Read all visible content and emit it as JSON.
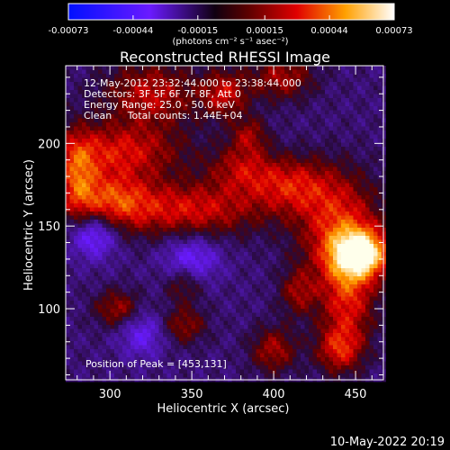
{
  "chart_data": {
    "type": "heatmap",
    "title": "Reconstructed RHESSI Image",
    "xlabel": "Heliocentric X (arcsec)",
    "ylabel": "Heliocentric Y (arcsec)",
    "xlim": [
      273,
      467
    ],
    "ylim": [
      57,
      247
    ],
    "xticks": [
      300,
      350,
      400,
      450
    ],
    "yticks": [
      100,
      150,
      200
    ],
    "colorbar": {
      "range": [
        -0.00073,
        0.00073
      ],
      "ticks": [
        "-0.00073",
        "-0.00044",
        "-0.00015",
        "0.00015",
        "0.00044",
        "0.00073"
      ],
      "units": "(photons cm⁻² s⁻¹ asec⁻²)"
    },
    "info_lines": [
      "12-May-2012 23:32:44.000 to 23:38:44.000",
      "Detectors: 3F 5F 6F 7F 8F, Att 0",
      "Energy Range: 25.0 - 50.0 keV",
      "Clean     Total counts: 1.44E+04"
    ],
    "peak_text": "Position of Peak = [453,131]",
    "peak": [
      453,
      131
    ],
    "emission_regions": [
      {
        "x": 453,
        "y": 133,
        "sx": 12,
        "sy": 10,
        "amp": 1.0
      },
      {
        "x": 440,
        "y": 150,
        "sx": 18,
        "sy": 22,
        "amp": 0.55
      },
      {
        "x": 410,
        "y": 175,
        "sx": 18,
        "sy": 12,
        "amp": 0.45
      },
      {
        "x": 380,
        "y": 185,
        "sx": 14,
        "sy": 10,
        "amp": 0.35
      },
      {
        "x": 350,
        "y": 160,
        "sx": 30,
        "sy": 12,
        "amp": 0.5
      },
      {
        "x": 300,
        "y": 165,
        "sx": 18,
        "sy": 12,
        "amp": 0.55
      },
      {
        "x": 305,
        "y": 195,
        "sx": 28,
        "sy": 12,
        "amp": 0.5
      },
      {
        "x": 280,
        "y": 180,
        "sx": 8,
        "sy": 18,
        "amp": 0.45
      },
      {
        "x": 325,
        "y": 230,
        "sx": 20,
        "sy": 14,
        "amp": 0.45
      },
      {
        "x": 370,
        "y": 230,
        "sx": 10,
        "sy": 10,
        "amp": 0.45
      },
      {
        "x": 405,
        "y": 240,
        "sx": 14,
        "sy": 10,
        "amp": 0.4
      },
      {
        "x": 385,
        "y": 205,
        "sx": 8,
        "sy": 8,
        "amp": 0.35
      },
      {
        "x": 445,
        "y": 105,
        "sx": 12,
        "sy": 20,
        "amp": 0.5
      },
      {
        "x": 440,
        "y": 75,
        "sx": 10,
        "sy": 10,
        "amp": 0.45
      },
      {
        "x": 400,
        "y": 75,
        "sx": 10,
        "sy": 10,
        "amp": 0.4
      },
      {
        "x": 415,
        "y": 110,
        "sx": 8,
        "sy": 10,
        "amp": 0.35
      },
      {
        "x": 305,
        "y": 100,
        "sx": 10,
        "sy": 8,
        "amp": 0.4
      },
      {
        "x": 345,
        "y": 90,
        "sx": 10,
        "sy": 8,
        "amp": 0.35
      },
      {
        "x": 345,
        "y": 115,
        "sx": 8,
        "sy": 8,
        "amp": 0.3
      }
    ],
    "negative_regions": [
      {
        "x": 290,
        "y": 145,
        "sx": 10,
        "sy": 10,
        "amp": 0.5
      },
      {
        "x": 350,
        "y": 130,
        "sx": 12,
        "sy": 10,
        "amp": 0.4
      },
      {
        "x": 320,
        "y": 85,
        "sx": 10,
        "sy": 10,
        "amp": 0.35
      }
    ]
  },
  "footer": {
    "date": "10-May-2022 20:19"
  }
}
